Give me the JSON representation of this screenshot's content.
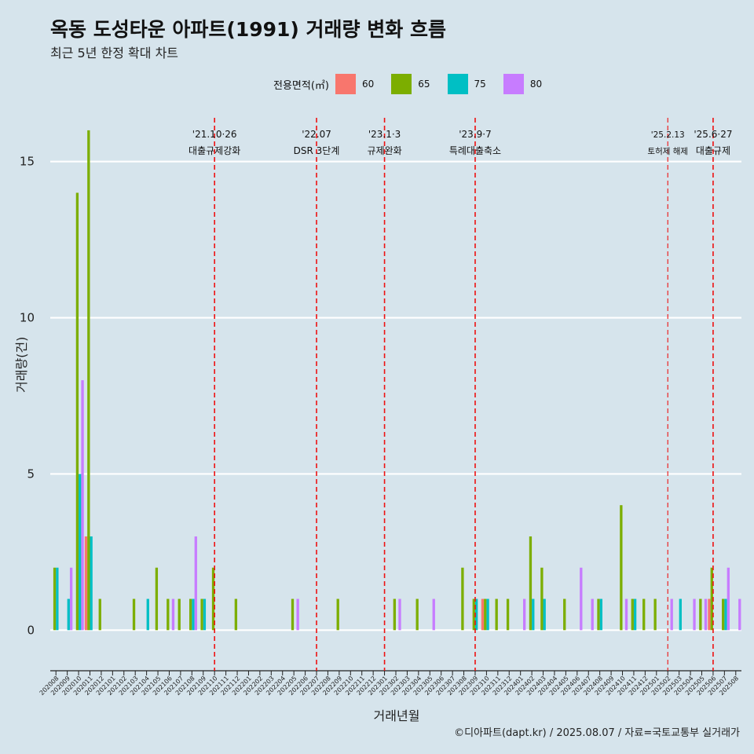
{
  "title": "옥동 도성타운 아파트(1991) 거래량 변화 흐름",
  "subtitle": "최근 5년 한정 확대 차트",
  "caption": "©디아파트(dapt.kr) / 2025.08.07 / 자료=국토교통부 실거래가",
  "legend": {
    "title": "전용면적(㎡)",
    "items": [
      {
        "label": "60",
        "color": "#f8766d"
      },
      {
        "label": "65",
        "color": "#7cae00"
      },
      {
        "label": "75",
        "color": "#00bfc4"
      },
      {
        "label": "80",
        "color": "#c77cff"
      }
    ]
  },
  "chart_data": {
    "type": "bar",
    "title": "옥동 도성타운 아파트(1991) 거래량 변화 흐름",
    "subtitle": "최근 5년 한정 확대 차트",
    "xlabel": "거래년월",
    "ylabel": "거래량(건)",
    "ylim": [
      -1.3,
      16.4
    ],
    "yticks": [
      0,
      5,
      10,
      15
    ],
    "grid": true,
    "legend_position": "top",
    "categories": [
      "202008",
      "202009",
      "202010",
      "202011",
      "202012",
      "202101",
      "202102",
      "202103",
      "202104",
      "202105",
      "202106",
      "202107",
      "202108",
      "202109",
      "202110",
      "202111",
      "202112",
      "202201",
      "202202",
      "202203",
      "202204",
      "202205",
      "202206",
      "202207",
      "202208",
      "202209",
      "202210",
      "202211",
      "202212",
      "202301",
      "202302",
      "202303",
      "202304",
      "202305",
      "202306",
      "202307",
      "202308",
      "202309",
      "202310",
      "202311",
      "202312",
      "202401",
      "202402",
      "202403",
      "202404",
      "202405",
      "202406",
      "202407",
      "202408",
      "202409",
      "202410",
      "202411",
      "202412",
      "202501",
      "202502",
      "202503",
      "202504",
      "202505",
      "202506",
      "202507",
      "202508"
    ],
    "series": [
      {
        "name": "60",
        "values": [
          0,
          0,
          0,
          3,
          0,
          0,
          0,
          0,
          0,
          0,
          0,
          0,
          0,
          0,
          0,
          0,
          0,
          0,
          0,
          0,
          0,
          0,
          0,
          0,
          0,
          0,
          0,
          0,
          0,
          0,
          0,
          0,
          0,
          0,
          0,
          0,
          0,
          0,
          1,
          0,
          0,
          0,
          0,
          0,
          0,
          0,
          0,
          0,
          0,
          0,
          0,
          0,
          0,
          0,
          0,
          0,
          0,
          0,
          1,
          0,
          0
        ]
      },
      {
        "name": "65",
        "values": [
          2,
          0,
          14,
          16,
          1,
          0,
          0,
          1,
          0,
          2,
          1,
          1,
          1,
          1,
          2,
          0,
          1,
          0,
          0,
          0,
          0,
          1,
          0,
          0,
          0,
          1,
          0,
          0,
          0,
          0,
          1,
          0,
          1,
          0,
          0,
          0,
          2,
          1,
          1,
          1,
          1,
          0,
          3,
          2,
          0,
          1,
          0,
          0,
          1,
          0,
          4,
          1,
          1,
          1,
          0,
          0,
          0,
          1,
          2,
          1,
          0
        ]
      },
      {
        "name": "75",
        "values": [
          2,
          1,
          5,
          3,
          0,
          0,
          0,
          0,
          1,
          0,
          0,
          0,
          1,
          1,
          0,
          0,
          0,
          0,
          0,
          0,
          0,
          0,
          0,
          0,
          0,
          0,
          0,
          0,
          0,
          0,
          0,
          0,
          0,
          0,
          0,
          0,
          0,
          1,
          1,
          0,
          0,
          0,
          1,
          1,
          0,
          0,
          0,
          0,
          1,
          0,
          0,
          1,
          0,
          0,
          0,
          1,
          0,
          0,
          0,
          1,
          0
        ]
      },
      {
        "name": "80",
        "values": [
          0,
          2,
          8,
          0,
          0,
          0,
          0,
          0,
          0,
          0,
          1,
          0,
          3,
          0,
          0,
          0,
          0,
          0,
          0,
          0,
          0,
          1,
          0,
          0,
          0,
          0,
          0,
          0,
          0,
          0,
          1,
          0,
          0,
          1,
          0,
          0,
          0,
          0,
          0,
          0,
          0,
          1,
          0,
          0,
          0,
          0,
          2,
          1,
          0,
          0,
          1,
          0,
          0,
          0,
          1,
          0,
          1,
          1,
          0,
          2,
          1
        ]
      }
    ],
    "events": [
      {
        "label1": "'21.10·26",
        "label2": "대출규제강화",
        "month": "202110",
        "style": "thick"
      },
      {
        "label1": "'22.07",
        "label2": "DSR 3단계",
        "month": "202207",
        "style": "thick"
      },
      {
        "label1": "'23.1·3",
        "label2": "규제완화",
        "month": "202301",
        "style": "thick"
      },
      {
        "label1": "'23.9·7",
        "label2": "특례대출축소",
        "month": "202309",
        "style": "thick"
      },
      {
        "label1": "'25.2.13",
        "label2": "토허제 해제",
        "month": "202502",
        "style": "thin"
      },
      {
        "label1": "'25.6·27",
        "label2": "대출규제",
        "month": "202506",
        "style": "thick"
      }
    ]
  }
}
